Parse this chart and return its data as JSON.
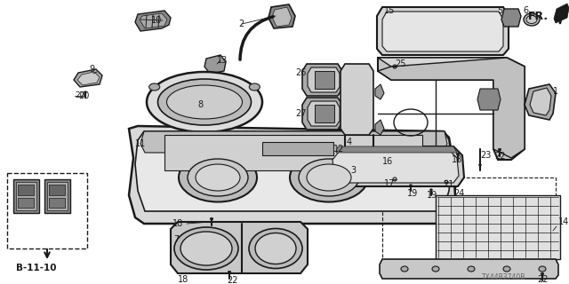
{
  "background_color": "#ffffff",
  "line_color": "#1a1a1a",
  "fig_width": 6.4,
  "fig_height": 3.2,
  "dpi": 100,
  "diagram_code": "TX44B3740B"
}
